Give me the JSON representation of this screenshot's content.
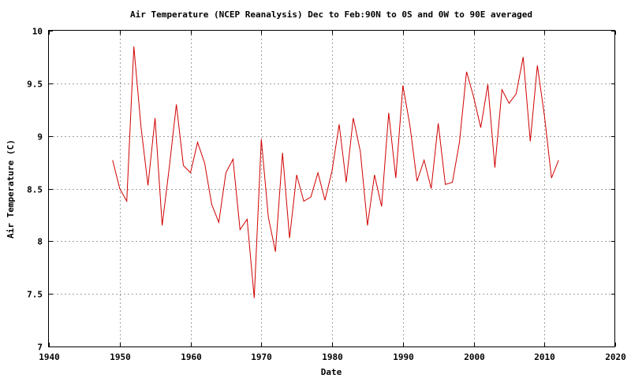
{
  "chart_data": {
    "type": "line",
    "title": "Air Temperature (NCEP Reanalysis) Dec to Feb:90N to 0S and 0W to 90E averaged",
    "xlabel": "Date",
    "ylabel": "Air Temperature (C)",
    "xlim": [
      1940,
      2020
    ],
    "ylim": [
      7,
      10
    ],
    "xticks": [
      1940,
      1950,
      1960,
      1970,
      1980,
      1990,
      2000,
      2010,
      2020
    ],
    "yticks": [
      7,
      7.5,
      8,
      8.5,
      9,
      9.5,
      10
    ],
    "ytick_labels": [
      "7",
      "7.5",
      "8",
      "8.5",
      "9",
      "9.5",
      "10"
    ],
    "grid": true,
    "series_color": "#d00000",
    "x": [
      1949,
      1950,
      1951,
      1952,
      1953,
      1954,
      1955,
      1956,
      1957,
      1958,
      1959,
      1960,
      1961,
      1962,
      1963,
      1964,
      1965,
      1966,
      1967,
      1968,
      1969,
      1970,
      1971,
      1972,
      1973,
      1974,
      1975,
      1976,
      1977,
      1978,
      1979,
      1980,
      1981,
      1982,
      1983,
      1984,
      1985,
      1986,
      1987,
      1988,
      1989,
      1990,
      1991,
      1992,
      1993,
      1994,
      1995,
      1996,
      1997,
      1998,
      1999,
      2000,
      2001,
      2002,
      2003,
      2004,
      2005,
      2006,
      2007,
      2008,
      2009,
      2010,
      2011,
      2012
    ],
    "values": [
      8.77,
      8.5,
      8.38,
      9.85,
      9.09,
      8.53,
      9.17,
      8.15,
      8.7,
      9.3,
      8.72,
      8.65,
      8.94,
      8.74,
      8.35,
      8.18,
      8.65,
      8.78,
      8.11,
      8.21,
      7.46,
      8.97,
      8.23,
      7.9,
      8.84,
      8.03,
      8.63,
      8.38,
      8.42,
      8.65,
      8.39,
      8.67,
      9.11,
      8.56,
      9.17,
      8.85,
      8.15,
      8.63,
      8.33,
      9.22,
      8.6,
      9.48,
      9.1,
      8.57,
      8.77,
      8.5,
      9.12,
      8.54,
      8.56,
      8.94,
      9.61,
      9.37,
      9.08,
      9.49,
      8.7,
      9.44,
      9.31,
      9.4,
      9.75,
      8.95,
      9.67,
      9.19,
      8.6,
      8.77
    ]
  }
}
